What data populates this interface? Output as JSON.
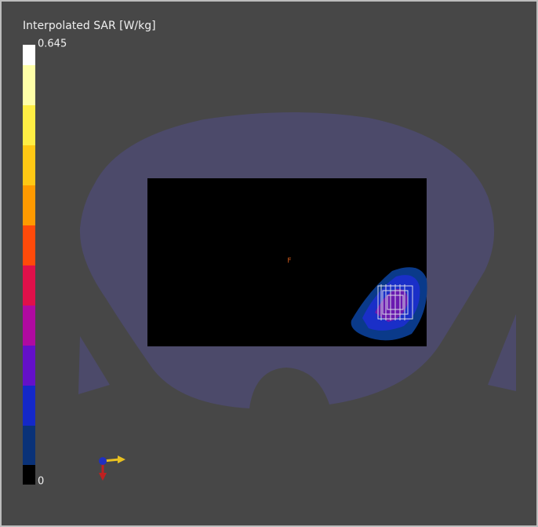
{
  "colorbar": {
    "title": "Interpolated SAR [W/kg]",
    "max": 0.645,
    "min": 0
  },
  "marker_label": "F"
}
